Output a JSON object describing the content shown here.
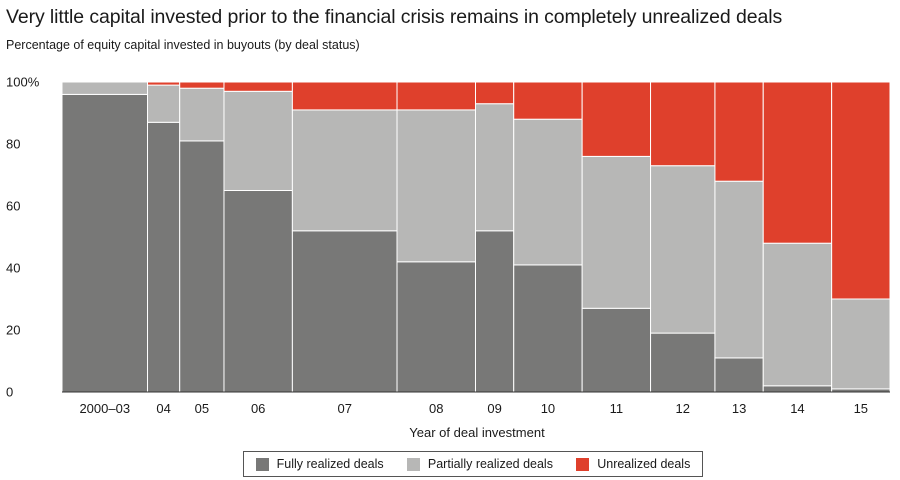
{
  "header": {
    "title": "Very little capital invested prior to the financial crisis remains in completely unrealized deals",
    "subtitle": "Percentage of equity capital invested in buyouts (by deal status)"
  },
  "chart_data": {
    "type": "bar",
    "subtype": "marimekko-stacked-100",
    "categories": [
      "2000–03",
      "04",
      "05",
      "06",
      "07",
      "08",
      "09",
      "10",
      "11",
      "12",
      "13",
      "14",
      "15"
    ],
    "relative_widths": [
      85,
      32,
      44,
      68,
      104,
      78,
      38,
      68,
      68,
      64,
      48,
      68,
      58
    ],
    "series": [
      {
        "name": "Fully realized deals",
        "color": "#787877",
        "values": [
          96,
          87,
          81,
          65,
          52,
          42,
          52,
          41,
          27,
          19,
          11,
          2,
          1
        ]
      },
      {
        "name": "Partially realized deals",
        "color": "#b7b7b6",
        "values": [
          4,
          12,
          17,
          32,
          39,
          49,
          41,
          47,
          49,
          54,
          57,
          46,
          29
        ]
      },
      {
        "name": "Unrealized deals",
        "color": "#df402c",
        "values": [
          0,
          1,
          2,
          3,
          9,
          9,
          7,
          12,
          24,
          27,
          32,
          52,
          70
        ]
      }
    ],
    "xlabel": "Year of deal investment",
    "ylabel": "",
    "ylim": [
      0,
      100
    ],
    "yticks": [
      "0",
      "20",
      "40",
      "60",
      "80",
      "100%"
    ],
    "legend": "bottom-center",
    "grid": false
  }
}
